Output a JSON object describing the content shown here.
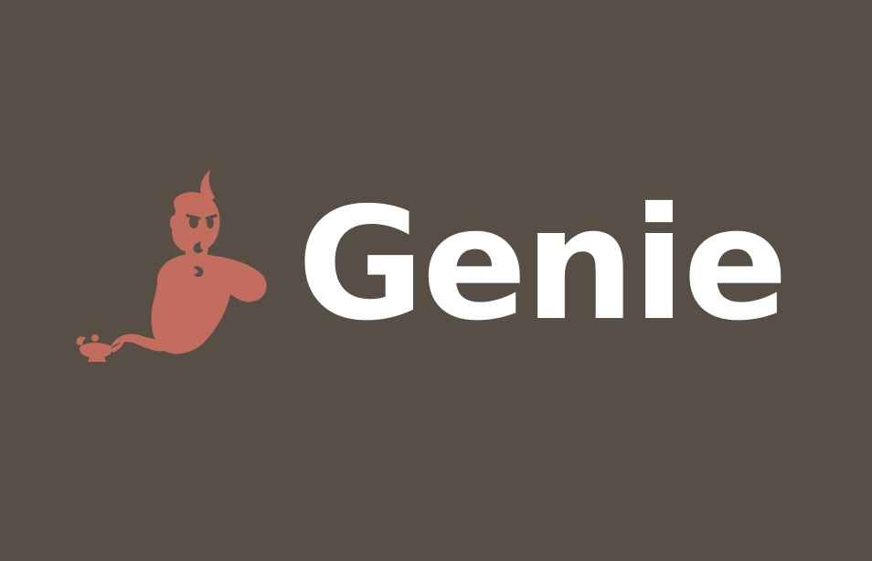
{
  "brand": {
    "name": "Genie",
    "mark": "genie-lamp-icon"
  },
  "colors": {
    "background": "#574f45",
    "mark": "#c26d5e",
    "wordmark": "#ffffff"
  }
}
